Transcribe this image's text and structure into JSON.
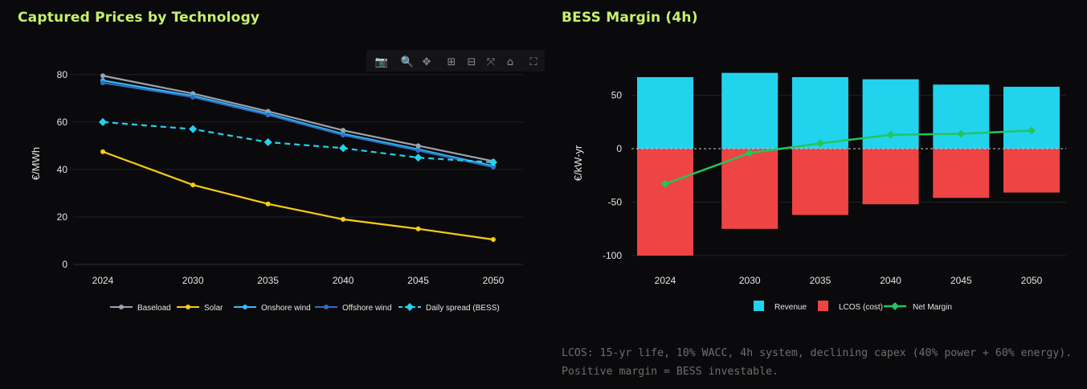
{
  "left_title": "Captured Prices by Technology",
  "right_title": "BESS Margin (4h)",
  "note": "LCOS: 15-yr life, 10% WACC, 4h system, declining capex (40% power + 60% energy). Positive margin = BESS investable.",
  "modebar": {
    "icons": [
      "camera-icon",
      "zoom-icon",
      "pan-icon",
      "zoom-in-icon",
      "zoom-out-icon",
      "autoscale-icon",
      "home-icon",
      "fullscreen-icon"
    ],
    "glyphs": [
      "📷",
      "🔍",
      "✥",
      "⊞",
      "⊟",
      "⤧",
      "⌂",
      "⛶"
    ]
  },
  "chart_data": [
    {
      "type": "line",
      "x": [
        2024,
        2030,
        2035,
        2040,
        2045,
        2050
      ],
      "ylabel": "€/MWh",
      "ylim": [
        0,
        80
      ],
      "yticks": [
        0,
        20,
        40,
        60,
        80
      ],
      "grid": true,
      "legend_position": "bottom",
      "series": [
        {
          "name": "Baseload",
          "values": [
            79.5,
            72,
            64.5,
            56.5,
            50,
            43.5
          ],
          "color": "#9ca3af",
          "dash": false,
          "marker": "circle"
        },
        {
          "name": "Solar",
          "values": [
            47.5,
            33.5,
            25.5,
            19,
            15,
            10.5
          ],
          "color": "#facc15",
          "dash": false,
          "marker": "circle"
        },
        {
          "name": "Onshore wind",
          "values": [
            77.5,
            71,
            63.5,
            55,
            48.5,
            41.5
          ],
          "color": "#38bdf8",
          "dash": false,
          "marker": "circle"
        },
        {
          "name": "Offshore wind",
          "values": [
            76.5,
            70.5,
            63,
            54.5,
            48,
            41
          ],
          "color": "#2f6fc1",
          "dash": false,
          "marker": "circle"
        },
        {
          "name": "Daily spread (BESS)",
          "values": [
            60,
            57,
            51.5,
            49,
            45,
            43
          ],
          "color": "#22d3ee",
          "dash": true,
          "marker": "diamond"
        }
      ]
    },
    {
      "type": "bar",
      "categories": [
        "2024",
        "2030",
        "2035",
        "2040",
        "2045",
        "2050"
      ],
      "ylabel": "€/kW-yr",
      "ylim": [
        -100,
        65
      ],
      "yticks": [
        -100,
        -50,
        0,
        50
      ],
      "grid": true,
      "legend_position": "bottom",
      "series": [
        {
          "name": "Revenue",
          "type": "bar",
          "values": [
            67,
            71,
            67,
            65,
            60,
            58
          ],
          "color": "#22d3ee"
        },
        {
          "name": "LCOS (cost)",
          "type": "bar",
          "values": [
            -100,
            -75,
            -62,
            -52,
            -46,
            -41
          ],
          "color": "#ef4444"
        },
        {
          "name": "Net Margin",
          "type": "line",
          "values": [
            -33,
            -4,
            5,
            13,
            14,
            17
          ],
          "color": "#22c55e",
          "marker": "diamond"
        }
      ]
    }
  ]
}
